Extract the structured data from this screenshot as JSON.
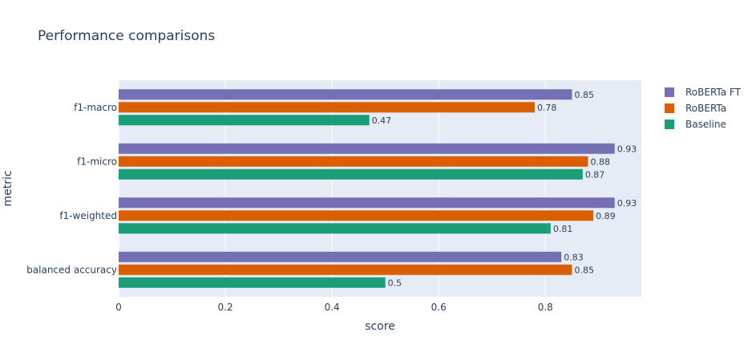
{
  "chart_data": {
    "type": "bar",
    "orientation": "horizontal",
    "title": "Performance comparisons",
    "xlabel": "score",
    "ylabel": "metric",
    "categories": [
      "f1-macro",
      "f1-micro",
      "f1-weighted",
      "balanced accuracy"
    ],
    "series": [
      {
        "name": "RoBERTa FT",
        "color": "#7570b3",
        "values": [
          0.85,
          0.93,
          0.93,
          0.83
        ]
      },
      {
        "name": "RoBERTa",
        "color": "#d95f02",
        "values": [
          0.78,
          0.88,
          0.89,
          0.85
        ]
      },
      {
        "name": "Baseline",
        "color": "#1b9e77",
        "values": [
          0.47,
          0.87,
          0.81,
          0.5
        ]
      }
    ],
    "xlim": [
      0,
      0.98
    ],
    "xticks": [
      0,
      0.2,
      0.4,
      0.6,
      0.8
    ],
    "xtick_labels": [
      "0",
      "0.2",
      "0.4",
      "0.6",
      "0.8"
    ],
    "grid": true,
    "legend_position": "top-right",
    "plot_background": "#e5ecf6"
  }
}
